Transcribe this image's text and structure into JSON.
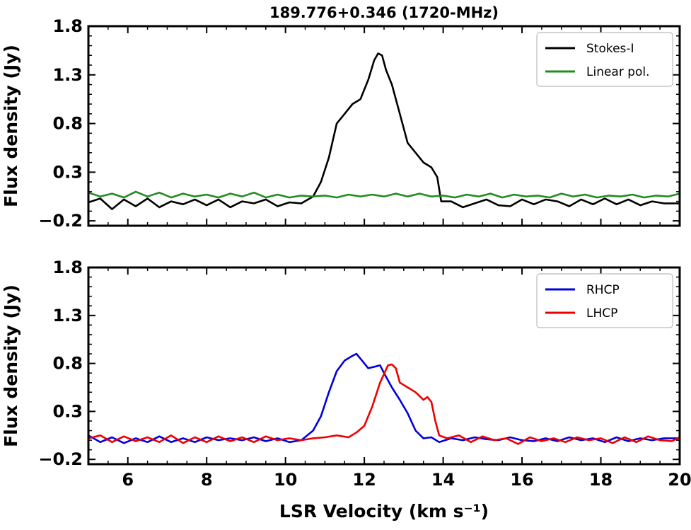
{
  "chart_data": [
    {
      "type": "line",
      "title": "189.776+0.346 (1720-MHz)",
      "xlabel": "",
      "ylabel": "Flux density (Jy)",
      "xlim": [
        5,
        20
      ],
      "ylim": [
        -0.25,
        1.8
      ],
      "yticks": [
        1.8,
        1.3,
        0.8,
        0.3,
        -0.2
      ],
      "ytick_labels": [
        "1.8",
        "1.3",
        "0.8",
        "0.3",
        "−0.2"
      ],
      "xticks": [
        6,
        8,
        10,
        12,
        14,
        16,
        18,
        20
      ],
      "legend_position": "top-right",
      "series": [
        {
          "name": "Stokes-I",
          "color": "#000000",
          "x": [
            5.0,
            5.3,
            5.6,
            5.9,
            6.2,
            6.5,
            6.8,
            7.1,
            7.4,
            7.7,
            8.0,
            8.3,
            8.6,
            8.9,
            9.2,
            9.5,
            9.8,
            10.1,
            10.4,
            10.7,
            10.9,
            11.1,
            11.3,
            11.5,
            11.7,
            11.9,
            12.1,
            12.25,
            12.35,
            12.45,
            12.55,
            12.7,
            12.9,
            13.1,
            13.3,
            13.5,
            13.7,
            13.85,
            13.95,
            14.2,
            14.5,
            14.8,
            15.1,
            15.4,
            15.7,
            16.0,
            16.3,
            16.6,
            16.9,
            17.2,
            17.5,
            17.8,
            18.1,
            18.4,
            18.7,
            19.0,
            19.3,
            19.6,
            20.0
          ],
          "y": [
            -0.01,
            0.03,
            -0.08,
            0.02,
            -0.05,
            0.03,
            -0.06,
            0.0,
            -0.03,
            0.02,
            -0.04,
            0.02,
            -0.06,
            0.0,
            -0.02,
            0.02,
            -0.05,
            -0.01,
            -0.02,
            0.05,
            0.2,
            0.45,
            0.8,
            0.9,
            1.0,
            1.05,
            1.25,
            1.45,
            1.52,
            1.5,
            1.35,
            1.2,
            0.9,
            0.6,
            0.5,
            0.4,
            0.35,
            0.25,
            0.0,
            0.0,
            -0.06,
            -0.02,
            0.02,
            -0.04,
            -0.05,
            0.02,
            -0.03,
            0.02,
            0.0,
            -0.05,
            0.02,
            -0.03,
            0.03,
            -0.03,
            0.02,
            -0.04,
            0.0,
            -0.02,
            -0.02
          ]
        },
        {
          "name": "Linear pol.",
          "color": "#228B22",
          "x": [
            5.0,
            5.3,
            5.6,
            5.9,
            6.2,
            6.5,
            6.8,
            7.1,
            7.4,
            7.7,
            8.0,
            8.3,
            8.6,
            8.9,
            9.2,
            9.5,
            9.8,
            10.1,
            10.4,
            10.7,
            11.0,
            11.3,
            11.6,
            11.9,
            12.2,
            12.5,
            12.8,
            13.1,
            13.4,
            13.7,
            14.0,
            14.3,
            14.6,
            14.9,
            15.2,
            15.5,
            15.8,
            16.1,
            16.4,
            16.7,
            17.0,
            17.3,
            17.6,
            17.9,
            18.2,
            18.5,
            18.8,
            19.1,
            19.4,
            19.7,
            20.0
          ],
          "y": [
            0.09,
            0.05,
            0.08,
            0.04,
            0.1,
            0.05,
            0.09,
            0.04,
            0.08,
            0.05,
            0.07,
            0.04,
            0.08,
            0.05,
            0.09,
            0.04,
            0.07,
            0.04,
            0.06,
            0.05,
            0.06,
            0.04,
            0.07,
            0.05,
            0.07,
            0.05,
            0.08,
            0.05,
            0.08,
            0.05,
            0.06,
            0.04,
            0.07,
            0.05,
            0.08,
            0.04,
            0.07,
            0.05,
            0.06,
            0.04,
            0.08,
            0.05,
            0.07,
            0.04,
            0.06,
            0.05,
            0.07,
            0.04,
            0.06,
            0.05,
            0.08
          ]
        }
      ]
    },
    {
      "type": "line",
      "title": "",
      "xlabel": "LSR Velocity (km s⁻¹)",
      "ylabel": "Flux density (Jy)",
      "xlim": [
        5,
        20
      ],
      "ylim": [
        -0.25,
        1.8
      ],
      "yticks": [
        1.8,
        1.3,
        0.8,
        0.3,
        -0.2
      ],
      "ytick_labels": [
        "1.8",
        "1.3",
        "0.8",
        "0.3",
        "−0.2"
      ],
      "xticks": [
        6,
        8,
        10,
        12,
        14,
        16,
        18,
        20
      ],
      "xtick_labels": [
        "6",
        "8",
        "10",
        "12",
        "14",
        "16",
        "18",
        "20"
      ],
      "legend_position": "top-right",
      "series": [
        {
          "name": "RHCP",
          "color": "#0000DD",
          "x": [
            5.0,
            5.3,
            5.6,
            5.9,
            6.2,
            6.5,
            6.8,
            7.1,
            7.4,
            7.7,
            8.0,
            8.3,
            8.6,
            8.9,
            9.2,
            9.5,
            9.8,
            10.1,
            10.4,
            10.7,
            10.9,
            11.1,
            11.3,
            11.5,
            11.7,
            11.8,
            11.9,
            12.1,
            12.3,
            12.4,
            12.5,
            12.7,
            12.9,
            13.1,
            13.3,
            13.5,
            13.7,
            13.9,
            14.2,
            14.5,
            14.8,
            15.1,
            15.4,
            15.7,
            16.0,
            16.3,
            16.6,
            16.9,
            17.2,
            17.5,
            17.8,
            18.1,
            18.4,
            18.7,
            19.0,
            19.3,
            19.6,
            20.0
          ],
          "y": [
            0.05,
            -0.02,
            0.03,
            -0.03,
            0.02,
            -0.02,
            0.04,
            -0.02,
            0.02,
            -0.02,
            0.03,
            0.0,
            0.02,
            0.0,
            0.03,
            -0.01,
            0.02,
            -0.02,
            0.0,
            0.1,
            0.25,
            0.5,
            0.72,
            0.83,
            0.88,
            0.9,
            0.85,
            0.75,
            0.77,
            0.78,
            0.7,
            0.55,
            0.42,
            0.28,
            0.1,
            0.02,
            0.03,
            -0.02,
            0.02,
            0.0,
            0.03,
            0.01,
            0.0,
            0.03,
            0.0,
            -0.01,
            0.02,
            -0.01,
            0.03,
            0.0,
            0.02,
            -0.02,
            0.03,
            -0.01,
            0.02,
            0.0,
            0.02,
            0.02
          ]
        },
        {
          "name": "LHCP",
          "color": "#EE0000",
          "x": [
            5.0,
            5.3,
            5.6,
            5.9,
            6.2,
            6.5,
            6.8,
            7.1,
            7.4,
            7.7,
            8.0,
            8.3,
            8.6,
            8.9,
            9.2,
            9.5,
            9.8,
            10.1,
            10.4,
            10.7,
            11.0,
            11.3,
            11.6,
            11.8,
            12.0,
            12.2,
            12.4,
            12.6,
            12.7,
            12.8,
            12.9,
            13.1,
            13.3,
            13.5,
            13.6,
            13.7,
            13.8,
            13.9,
            14.1,
            14.4,
            14.7,
            15.0,
            15.3,
            15.6,
            15.9,
            16.2,
            16.5,
            16.8,
            17.1,
            17.4,
            17.7,
            18.0,
            18.3,
            18.6,
            18.9,
            19.2,
            19.5,
            19.8,
            20.0
          ],
          "y": [
            0.02,
            0.05,
            -0.02,
            0.04,
            -0.01,
            0.03,
            -0.02,
            0.05,
            -0.03,
            0.03,
            -0.02,
            0.04,
            -0.01,
            0.03,
            -0.02,
            0.04,
            0.0,
            0.02,
            0.0,
            0.02,
            0.03,
            0.05,
            0.03,
            0.08,
            0.15,
            0.35,
            0.6,
            0.78,
            0.79,
            0.75,
            0.6,
            0.55,
            0.5,
            0.42,
            0.45,
            0.4,
            0.2,
            0.05,
            0.02,
            0.05,
            -0.02,
            0.04,
            0.0,
            0.02,
            -0.04,
            0.03,
            -0.01,
            0.02,
            -0.02,
            0.03,
            0.0,
            0.02,
            -0.03,
            0.03,
            -0.02,
            0.04,
            0.0,
            -0.01,
            0.03
          ]
        }
      ]
    }
  ]
}
